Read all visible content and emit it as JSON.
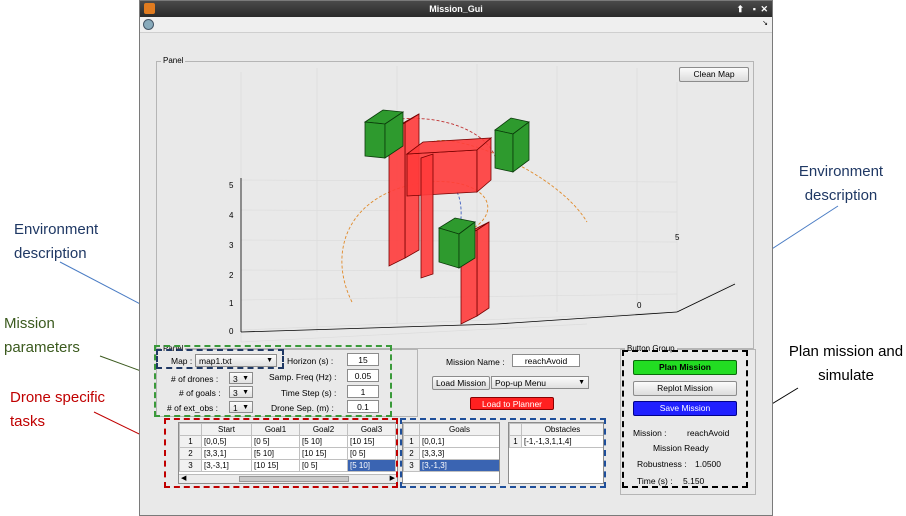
{
  "window": {
    "title": "Mission_Gui"
  },
  "plot": {
    "panel_title": "Panel",
    "clear_button": "Clean Map",
    "z_ticks": [
      "5",
      "4",
      "3",
      "2",
      "1",
      "0"
    ],
    "y_ticks": [
      "5",
      "0"
    ]
  },
  "settings": {
    "panel_title": "Panel",
    "map_label": "Map :",
    "map_value": "map1.txt",
    "drones_label": "# of drones :",
    "drones_value": "3",
    "goals_label": "# of goals :",
    "goals_value": "3",
    "ext_obs_label": "# of ext_obs :",
    "ext_obs_value": "1",
    "horizon_label": "Horizon (s) :",
    "horizon_value": "15",
    "samp_freq_label": "Samp. Freq (Hz) :",
    "samp_freq_value": "0.05",
    "time_step_label": "Time Step (s) :",
    "time_step_value": "1",
    "drone_sep_label": "Drone Sep. (m) :",
    "drone_sep_value": "0.1"
  },
  "mission": {
    "name_label": "Mission Name :",
    "name_value": "reachAvoid",
    "load_mission_button": "Load Mission",
    "popup_value": "Pop-up Menu",
    "load_planner_button": "Load to Planner"
  },
  "drone_table": {
    "headers": [
      "Start",
      "Goal1",
      "Goal2",
      "Goal3"
    ],
    "rows": [
      {
        "n": "1",
        "cells": [
          "[0,0,5]",
          "[0 5]",
          "[5 10]",
          "[10 15]"
        ]
      },
      {
        "n": "2",
        "cells": [
          "[3,3,1]",
          "[5 10]",
          "[10 15]",
          "[0 5]"
        ]
      },
      {
        "n": "3",
        "cells": [
          "[3,-3,1]",
          "[10 15]",
          "[0 5]",
          "[5 10]"
        ]
      }
    ]
  },
  "goals_table": {
    "header": "Goals",
    "rows": [
      {
        "n": "1",
        "v": "[0,0,1]"
      },
      {
        "n": "2",
        "v": "[3,3,3]"
      },
      {
        "n": "3",
        "v": "[3,-1,3]"
      }
    ]
  },
  "obstacles_table": {
    "header": "Obstacles",
    "rows": [
      {
        "n": "1",
        "v": "[-1,-1,3,1,1,4]"
      }
    ]
  },
  "button_group": {
    "title": "Button Group",
    "plan_button": "Plan Mission",
    "replot_button": "Replot Mission",
    "save_button": "Save Mission",
    "mission_label": "Mission :",
    "mission_value": "reachAvoid",
    "status": "Mission Ready",
    "robustness_label": "Robustness :",
    "robustness_value": "1.0500",
    "time_label": "Time (s) :",
    "time_value": "5.150"
  },
  "annotations": {
    "env_left": "Environment description",
    "mission_params": "Mission parameters",
    "drone_tasks": "Drone specific tasks",
    "env_right": "Environment description",
    "plan_sim": "Plan mission and simulate"
  },
  "colors": {
    "green_box": "#2e9a2e",
    "red_box": "#ff3b3b",
    "plan_btn": "#22dd22",
    "save_btn": "#2020ff",
    "load_btn": "#ff2020"
  }
}
